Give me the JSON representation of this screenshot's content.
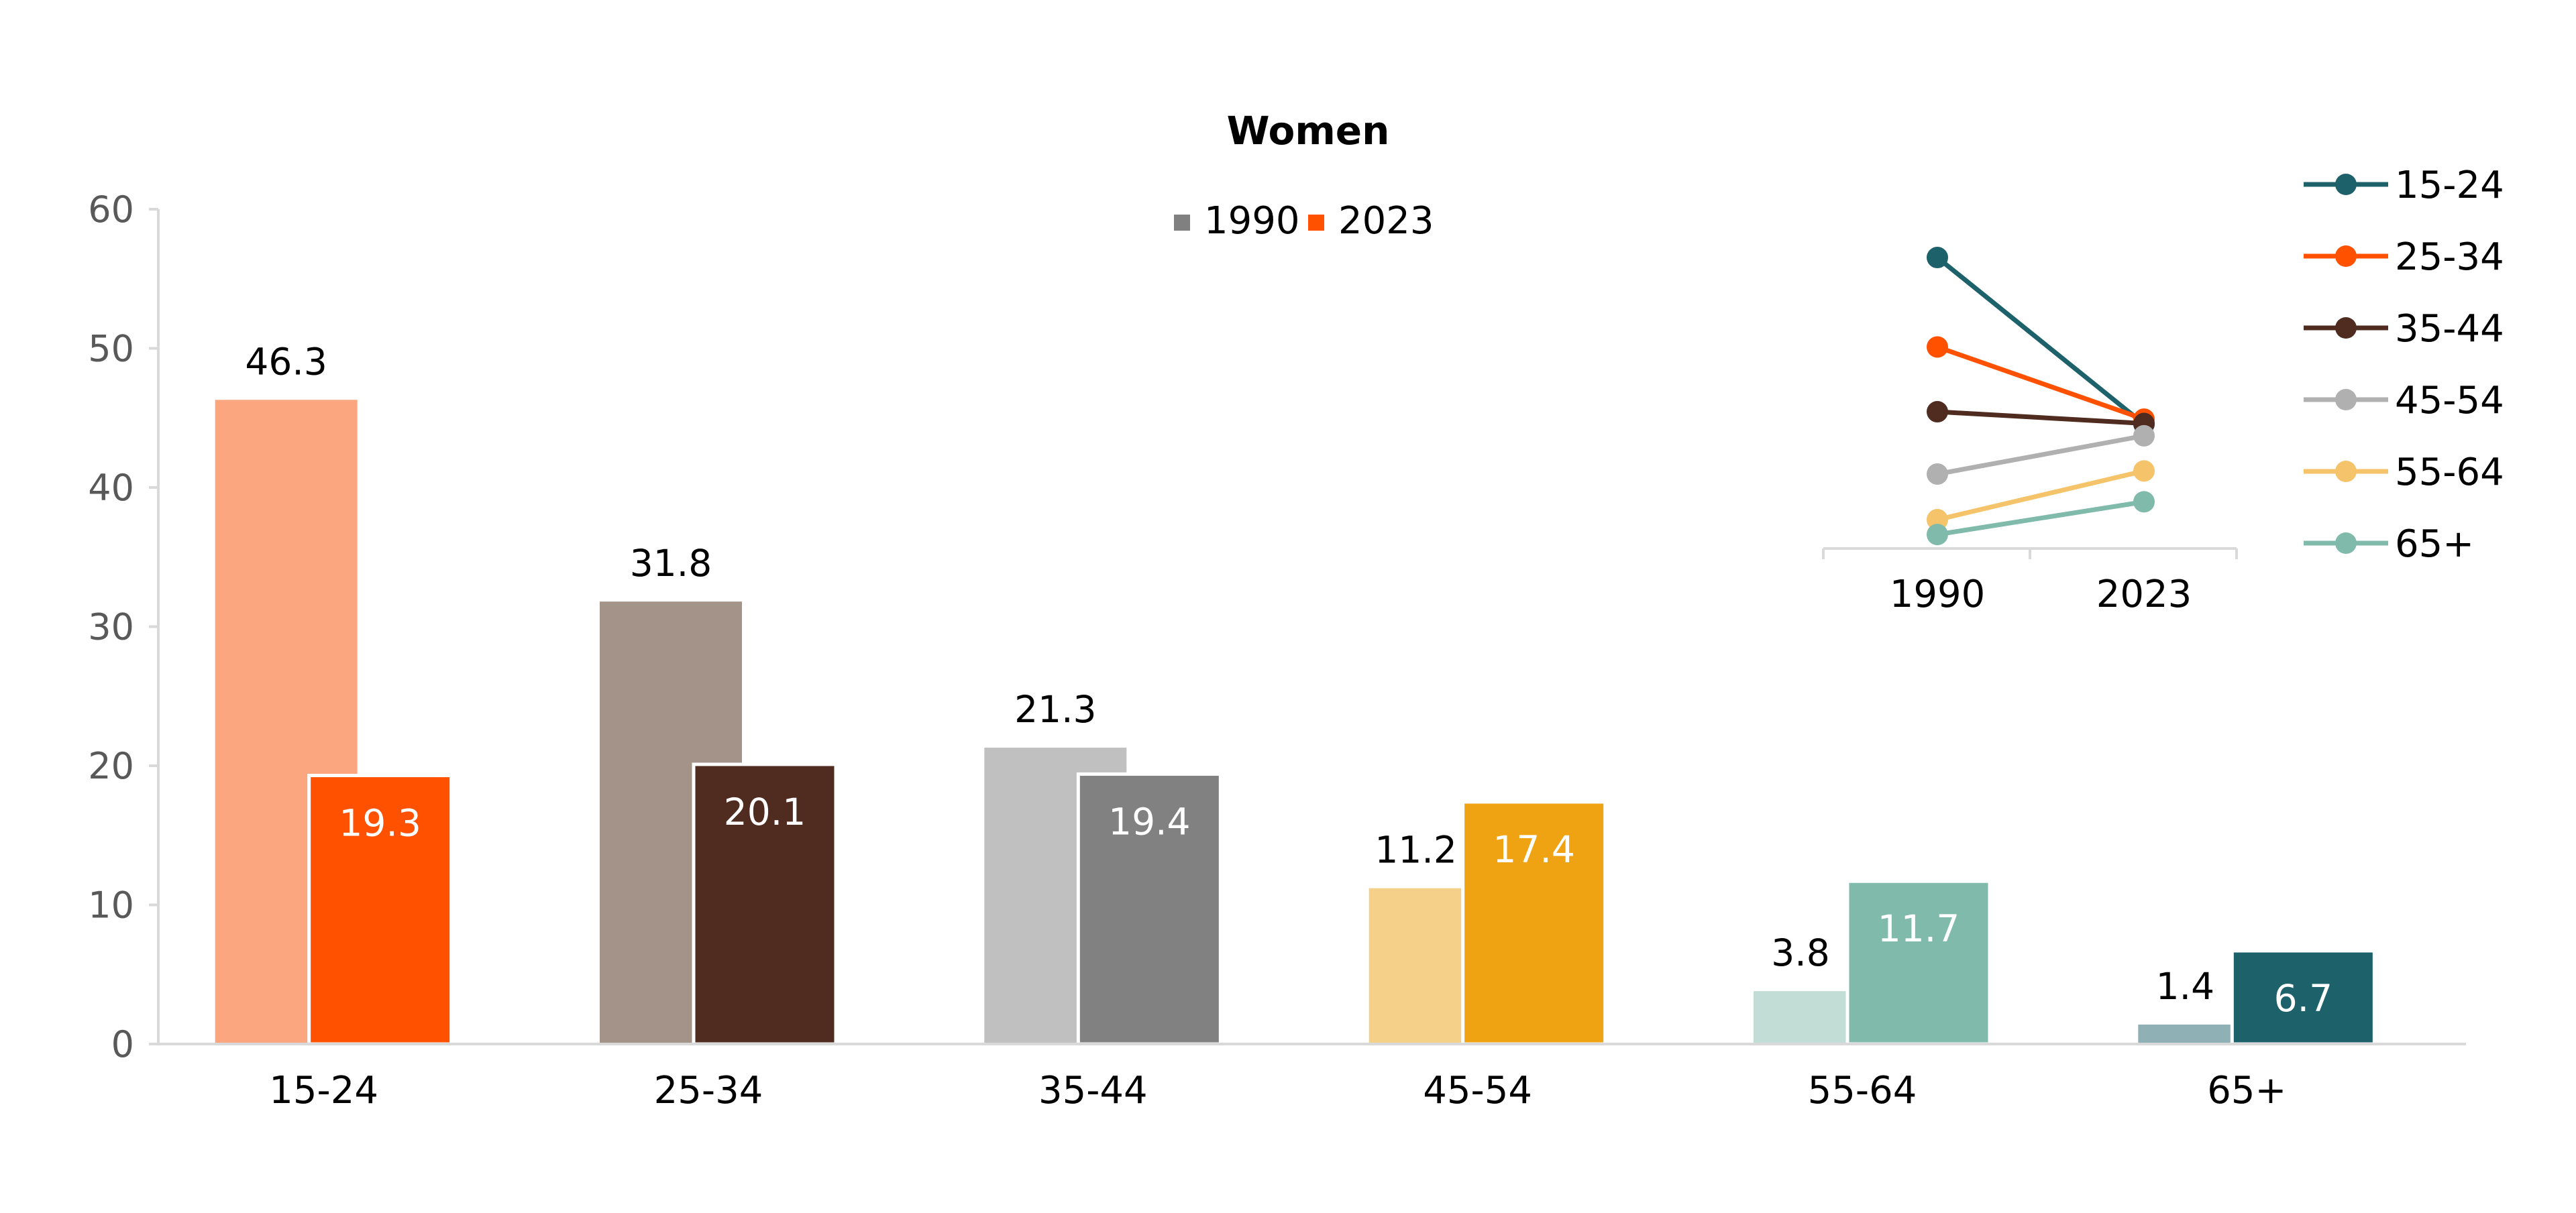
{
  "chart_data": [
    {
      "type": "bar",
      "title": "Women",
      "categories": [
        "15-24",
        "25-34",
        "35-44",
        "45-54",
        "55-64",
        "65+"
      ],
      "series": [
        {
          "name": "1990",
          "values": [
            46.3,
            31.8,
            21.3,
            11.2,
            3.8,
            1.4
          ]
        },
        {
          "name": "2023",
          "values": [
            19.3,
            20.1,
            19.4,
            17.4,
            11.7,
            6.7
          ]
        }
      ],
      "ylim": [
        0,
        60
      ],
      "yticks": [
        0,
        10,
        20,
        30,
        40,
        50,
        60
      ],
      "legend": {
        "position": "top-center",
        "colors": {
          "1990": "#808080",
          "2023": "#FF5100"
        }
      },
      "bar_colors": {
        "1990": [
          "#FCA67F",
          "#A39389",
          "#C0C0C0",
          "#F5D088",
          "#C2DDD5",
          "#8FB1B5"
        ],
        "2023": [
          "#FF5100",
          "#4F2B20",
          "#818181",
          "#EFA313",
          "#80BAAA",
          "#1D616B"
        ]
      },
      "label_colors": {
        "2023": "#ffffff",
        "1990": "#000000"
      },
      "grid": false
    },
    {
      "type": "line",
      "x": [
        "1990",
        "2023"
      ],
      "series": [
        {
          "name": "15-24",
          "values": [
            46.3,
            19.3
          ],
          "color": "#1D616B"
        },
        {
          "name": "25-34",
          "values": [
            31.8,
            20.1
          ],
          "color": "#FF5100"
        },
        {
          "name": "35-44",
          "values": [
            21.3,
            19.4
          ],
          "color": "#4F2B20"
        },
        {
          "name": "45-54",
          "values": [
            11.2,
            17.4
          ],
          "color": "#B0B0B0"
        },
        {
          "name": "55-64",
          "values": [
            3.8,
            11.7
          ],
          "color": "#F5C46A"
        },
        {
          "name": "65+",
          "values": [
            1.4,
            6.7
          ],
          "color": "#80BAAA"
        }
      ],
      "legend": {
        "position": "right"
      },
      "yaxis_visible": false
    }
  ]
}
